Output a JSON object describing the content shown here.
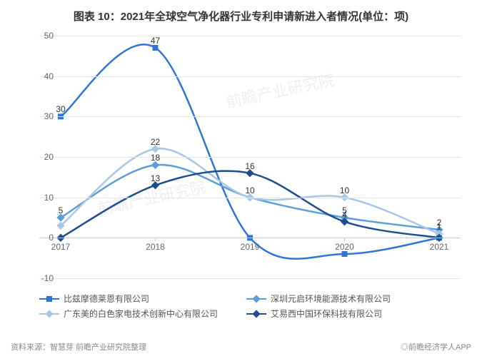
{
  "title": "图表 10：2021年全球空气净化器行业专利申请新进入者情况(单位：项)",
  "title_fontsize": 15,
  "chart": {
    "type": "line",
    "x_categories": [
      "2017",
      "2018",
      "2019",
      "2020",
      "2021"
    ],
    "y_ticks": [
      -10,
      0,
      10,
      20,
      30,
      40,
      50
    ],
    "ylim": [
      -10,
      50
    ],
    "grid_color": "#e6e6e6",
    "axis_color": "#cccccc",
    "background_color": "#ffffff",
    "label_fontsize": 12,
    "data_label_fontsize": 12,
    "line_width": 2.5,
    "series": [
      {
        "name": "比兹摩德莱恩有限公司",
        "color": "#2e75d6",
        "marker": "square",
        "values": [
          30,
          47,
          0,
          -4,
          0
        ],
        "show_labels": [
          30,
          47,
          null,
          null,
          null
        ]
      },
      {
        "name": "深圳元启环境能源技术有限公司",
        "color": "#5b9ed8",
        "marker": "diamond",
        "values": [
          5,
          18,
          10,
          5,
          2
        ],
        "show_labels": [
          5,
          18,
          10,
          5,
          2
        ]
      },
      {
        "name": "广东美的白色家电技术创新中心有限公司",
        "color": "#a7c7e7",
        "marker": "diamond",
        "values": [
          3,
          22,
          10,
          10,
          1
        ],
        "show_labels": [
          null,
          22,
          null,
          10,
          1
        ]
      },
      {
        "name": "艾易西中国环保科技有限公司",
        "color": "#1f4e8c",
        "marker": "diamond",
        "values": [
          0,
          13,
          16,
          4,
          0
        ],
        "show_labels": [
          null,
          13,
          16,
          4,
          null
        ]
      }
    ]
  },
  "watermarks": [
    "前瞻产业研究院",
    "前瞻产业研究院"
  ],
  "source": "资料来源：智慧芽 前瞻产业研究院整理",
  "app_credit": "◎前瞻经济学人APP"
}
